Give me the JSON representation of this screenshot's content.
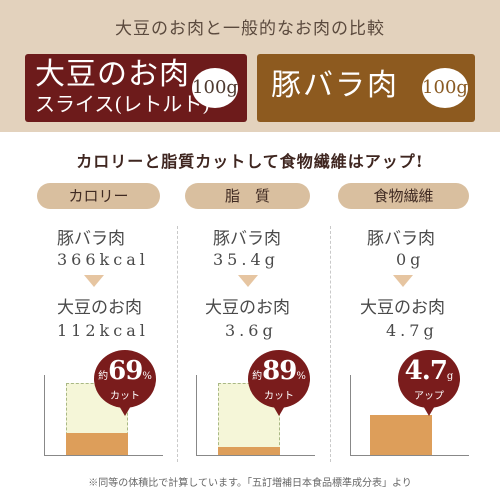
{
  "header": {
    "title": "大豆のお肉と一般的なお肉の比較",
    "soy": {
      "line1": "大豆のお肉",
      "line2": "スライス(レトルト)",
      "weight": "100g"
    },
    "pork": {
      "name": "豚バラ肉",
      "weight": "100g"
    }
  },
  "headline": "カロリーと脂質カットして食物繊維はアップ!",
  "columns": [
    {
      "title": "カロリー",
      "before_label": "豚バラ肉",
      "before_value": "366kcal",
      "after_label": "大豆のお肉",
      "after_value": "112kcal",
      "badge_prefix": "約",
      "badge_value": "69",
      "badge_unit": "%",
      "badge_suffix": "カット",
      "fill_ratio": 0.31
    },
    {
      "title": "脂　質",
      "before_label": "豚バラ肉",
      "before_value": "35.4g",
      "after_label": "大豆のお肉",
      "after_value": "3.6g",
      "badge_prefix": "約",
      "badge_value": "89",
      "badge_unit": "%",
      "badge_suffix": "カット",
      "fill_ratio": 0.11
    },
    {
      "title": "食物繊維",
      "before_label": "豚バラ肉",
      "before_value": "0g",
      "after_label": "大豆のお肉",
      "after_value": "4.7g",
      "badge_prefix": "",
      "badge_value": "4.7",
      "badge_unit": "g",
      "badge_suffix": "アップ",
      "fill_ratio": 0.55
    }
  ],
  "footnote": "※同等の体積比で計算しています。「五訂増補日本食品標準成分表」より",
  "colors": {
    "soy_box": "#6d1b1b",
    "pork_box": "#8d5a1f",
    "badge": "#7a1c1c",
    "bar": "#dd9e5a",
    "banner": "#e3d2bd"
  }
}
